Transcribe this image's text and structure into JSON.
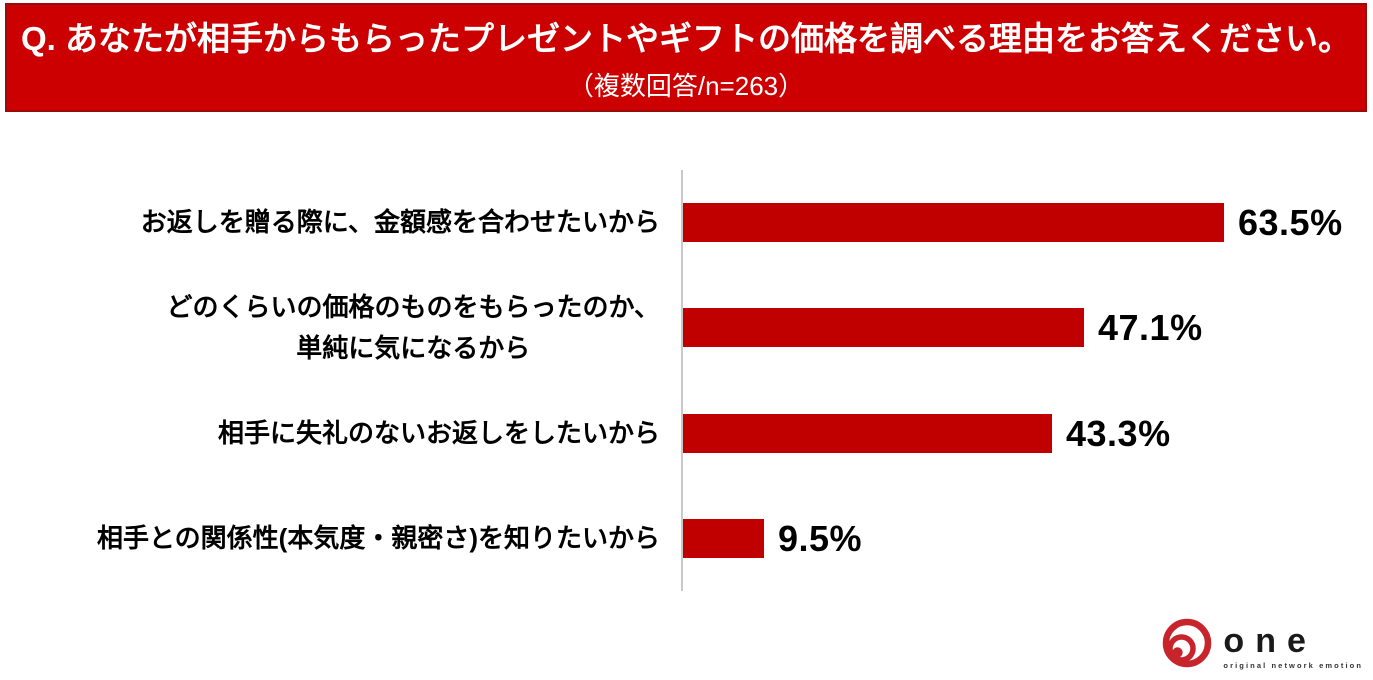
{
  "header": {
    "title": "Q. あなたが相手からもらったプレゼントやギフトの価格を調べる理由をお答えください。",
    "subtitle": "（複数回答/n=263）"
  },
  "chart_data": {
    "type": "bar",
    "orientation": "horizontal",
    "title": "あなたが相手からもらったプレゼントやギフトの価格を調べる理由をお答えください。",
    "subtitle": "複数回答/n=263",
    "categories": [
      "お返しを贈る際に、金額感を合わせたいから",
      "どのくらいの価格のものをもらったのか、\n単純に気になるから",
      "相手に失礼のないお返しをしたいから",
      "相手との関係性(本気度・親密さ)を知りたいから"
    ],
    "values": [
      63.5,
      47.1,
      43.3,
      9.5
    ],
    "value_labels": [
      "63.5%",
      "47.1%",
      "43.3%",
      "9.5%"
    ],
    "xlabel": "",
    "ylabel": "",
    "xlim": [
      0,
      75
    ],
    "grid": "off",
    "legend": "none",
    "bar_color": "#C00000",
    "axis_color": "#C9C9C9"
  },
  "logo": {
    "word": "one",
    "tagline": "original network emotion",
    "icon": "spiral-circles-icon",
    "icon_color": "#C8242B"
  },
  "colors": {
    "banner_fill": "#CC0000",
    "banner_border": "#9B0B0B",
    "bar": "#C00000",
    "text": "#000000",
    "banner_text": "#FFFFFF"
  }
}
